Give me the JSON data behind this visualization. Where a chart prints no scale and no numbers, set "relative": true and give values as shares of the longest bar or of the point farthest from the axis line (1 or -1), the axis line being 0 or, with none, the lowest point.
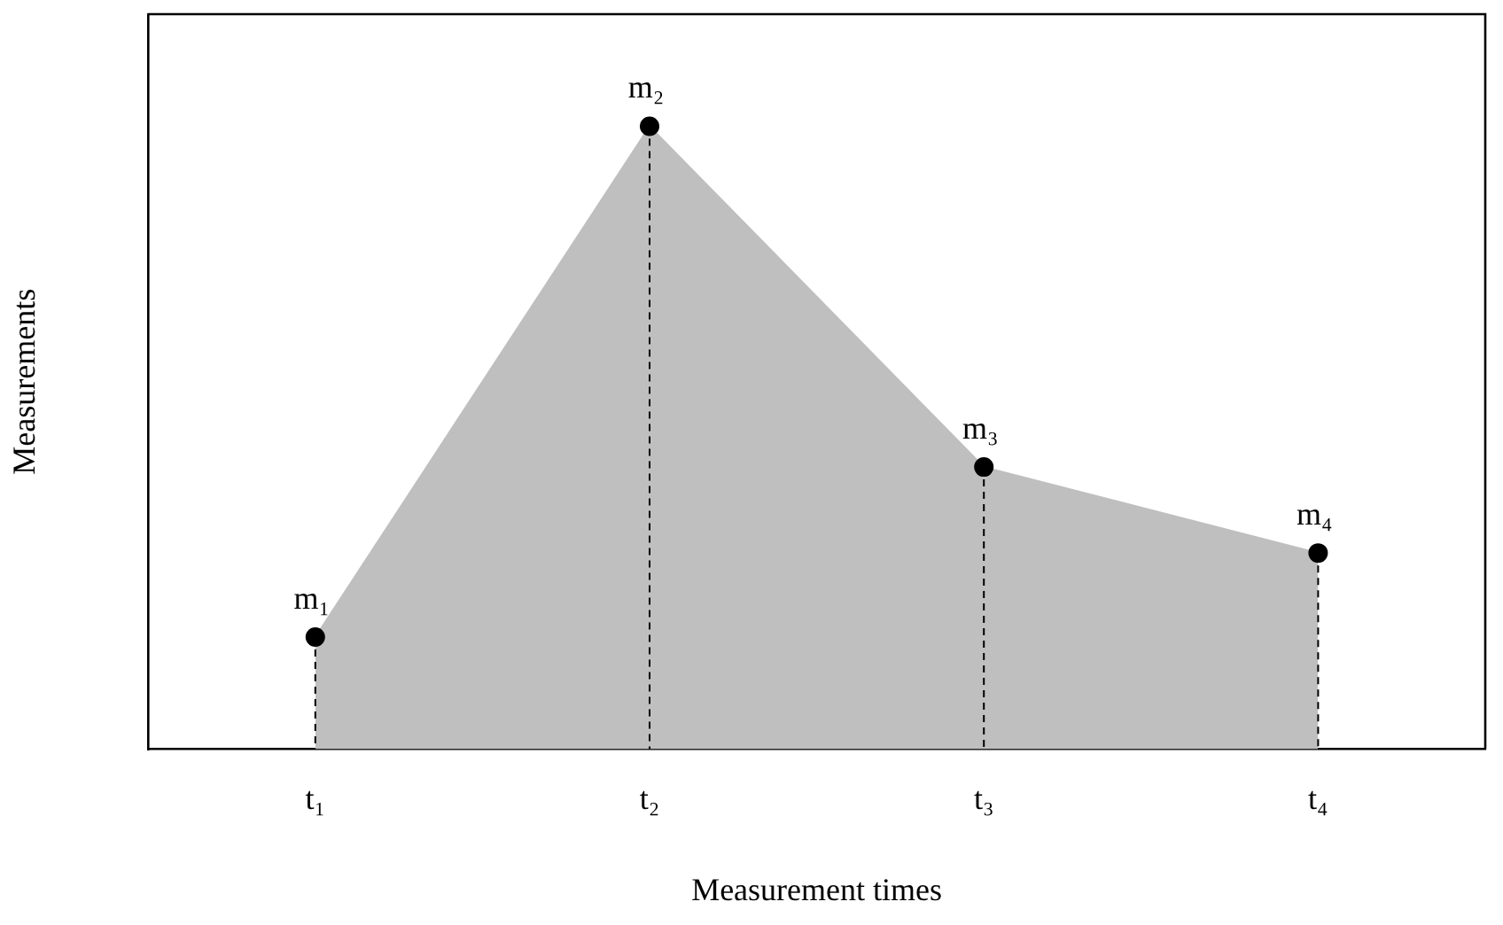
{
  "chart_data": {
    "type": "area",
    "relative": true,
    "xlabel": "Measurement times",
    "ylabel": "Measurements",
    "categories": [
      "t₁",
      "t₂",
      "t₃",
      "t₄"
    ],
    "series": [
      {
        "color": "#bfbfbf",
        "values": [
          0.18,
          1,
          0.453,
          0.315
        ]
      }
    ],
    "marker": "circle",
    "annotations": [
      {
        "text": "m₁",
        "x": "t₁",
        "y": 0.18
      },
      {
        "text": "m₂",
        "x": "t₂",
        "y": 1
      },
      {
        "text": "m₃",
        "x": "t₃",
        "y": 0.453
      },
      {
        "text": "m₄",
        "x": "t₄",
        "y": 0.315
      }
    ]
  }
}
